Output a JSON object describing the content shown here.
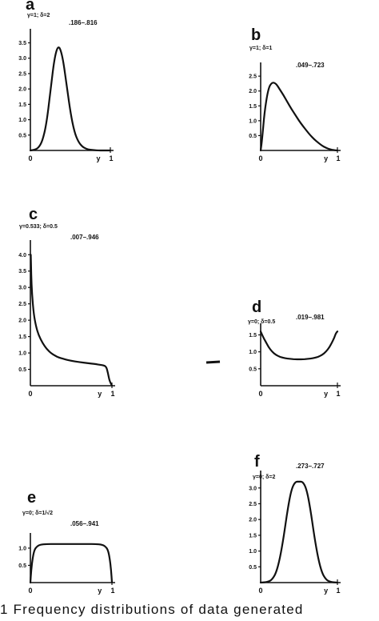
{
  "caption": "1  Frequency distributions of data generated",
  "chart_data": [
    {
      "type": "line",
      "panel": "a",
      "params": "γ=1; δ=2",
      "range": ".186–.816",
      "x_ticks": [
        "0",
        "y",
        "1"
      ],
      "y_ticks": [
        0.5,
        1.0,
        1.5,
        2.0,
        2.5,
        3.0,
        3.5
      ],
      "y_tick_labels": [
        "0.5",
        "1.0",
        "1.5",
        "2.0",
        "2.5",
        "3.0",
        "3.5"
      ],
      "ylim": [
        0,
        3.8
      ],
      "xlim": [
        0,
        1
      ],
      "x": [
        0.0,
        0.05,
        0.1,
        0.15,
        0.2,
        0.25,
        0.3,
        0.35,
        0.4,
        0.45,
        0.5,
        0.55,
        0.6,
        0.65,
        0.7,
        0.75,
        0.8,
        0.85,
        0.9,
        0.95,
        1.0
      ],
      "y": [
        0.0,
        0.02,
        0.08,
        0.3,
        0.85,
        1.9,
        3.0,
        3.45,
        3.1,
        2.2,
        1.25,
        0.6,
        0.28,
        0.12,
        0.05,
        0.02,
        0.01,
        0.0,
        0.0,
        0.0,
        0.0
      ]
    },
    {
      "type": "line",
      "panel": "b",
      "params": "γ=1; δ=1",
      "range": ".049–.723",
      "x_ticks": [
        "0",
        "y",
        "1"
      ],
      "y_ticks": [
        0.5,
        1.0,
        1.5,
        2.0,
        2.5
      ],
      "y_tick_labels": [
        "0.5",
        "1.0",
        "1.5",
        "2.0",
        "2.5"
      ],
      "ylim": [
        0,
        2.8
      ],
      "xlim": [
        0,
        1
      ],
      "x": [
        0.0,
        0.02,
        0.05,
        0.1,
        0.15,
        0.2,
        0.25,
        0.3,
        0.35,
        0.4,
        0.45,
        0.5,
        0.55,
        0.6,
        0.65,
        0.7,
        0.75,
        0.8,
        0.85,
        0.9,
        0.95,
        1.0
      ],
      "y": [
        0.0,
        0.4,
        1.3,
        2.1,
        2.3,
        2.25,
        2.05,
        1.85,
        1.62,
        1.4,
        1.2,
        1.0,
        0.82,
        0.66,
        0.5,
        0.37,
        0.26,
        0.16,
        0.09,
        0.04,
        0.01,
        0.0
      ]
    },
    {
      "type": "line",
      "panel": "c",
      "params": "γ=0.533; δ=0.5",
      "range": ".007–.946",
      "x_ticks": [
        "0",
        "y",
        "1"
      ],
      "y_ticks": [
        0.5,
        1.0,
        1.5,
        2.0,
        2.5,
        3.0,
        3.5,
        4.0
      ],
      "y_tick_labels": [
        "0.5",
        "1.0",
        "1.5",
        "2.0",
        "2.5",
        "3.0",
        "3.5",
        "4.0"
      ],
      "ylim": [
        0,
        4.3
      ],
      "xlim": [
        0,
        1
      ],
      "x": [
        0.005,
        0.01,
        0.02,
        0.04,
        0.07,
        0.1,
        0.15,
        0.2,
        0.25,
        0.3,
        0.35,
        0.4,
        0.5,
        0.6,
        0.7,
        0.8,
        0.85,
        0.9,
        0.93,
        0.95,
        0.97,
        1.0
      ],
      "y": [
        4.0,
        3.4,
        2.8,
        2.2,
        1.8,
        1.55,
        1.3,
        1.12,
        1.0,
        0.92,
        0.86,
        0.82,
        0.76,
        0.72,
        0.69,
        0.66,
        0.64,
        0.62,
        0.58,
        0.4,
        0.15,
        0.0
      ]
    },
    {
      "type": "line",
      "panel": "d",
      "params": "γ=0; δ=0.5",
      "range": ".019–.981",
      "x_ticks": [
        "0",
        "y",
        "1"
      ],
      "y_ticks": [
        0.5,
        1.0,
        1.5
      ],
      "y_tick_labels": [
        "0.5",
        "1.0",
        "1.5"
      ],
      "ylim": [
        0,
        1.7
      ],
      "xlim": [
        0,
        1
      ],
      "x": [
        0.0,
        0.02,
        0.04,
        0.07,
        0.1,
        0.15,
        0.2,
        0.25,
        0.3,
        0.35,
        0.4,
        0.45,
        0.5,
        0.55,
        0.6,
        0.65,
        0.7,
        0.75,
        0.8,
        0.85,
        0.9,
        0.93,
        0.96,
        0.98,
        1.0
      ],
      "y": [
        1.6,
        1.5,
        1.4,
        1.28,
        1.15,
        1.0,
        0.91,
        0.85,
        0.82,
        0.8,
        0.79,
        0.78,
        0.78,
        0.78,
        0.79,
        0.8,
        0.82,
        0.85,
        0.91,
        1.0,
        1.15,
        1.28,
        1.42,
        1.55,
        1.6
      ]
    },
    {
      "type": "line",
      "panel": "e",
      "params": "γ=0; δ=1/√2",
      "range": ".056–.941",
      "x_ticks": [
        "0",
        "y",
        "1"
      ],
      "y_ticks": [
        0.5,
        1.0
      ],
      "y_tick_labels": [
        "0.5",
        "1.0"
      ],
      "ylim": [
        0,
        1.3
      ],
      "xlim": [
        0,
        1
      ],
      "x": [
        0.0,
        0.01,
        0.03,
        0.05,
        0.08,
        0.12,
        0.2,
        0.3,
        0.4,
        0.5,
        0.6,
        0.7,
        0.8,
        0.88,
        0.92,
        0.95,
        0.97,
        0.99,
        1.0
      ],
      "y": [
        0.0,
        0.35,
        0.75,
        0.95,
        1.05,
        1.1,
        1.12,
        1.12,
        1.12,
        1.12,
        1.12,
        1.12,
        1.12,
        1.1,
        1.05,
        0.95,
        0.75,
        0.35,
        0.0
      ]
    },
    {
      "type": "line",
      "panel": "f",
      "params": "γ=0; δ=2",
      "range": ".273–.727",
      "x_ticks": [
        "0",
        "y",
        "1"
      ],
      "y_ticks": [
        0.5,
        1.0,
        1.5,
        2.0,
        2.5,
        3.0
      ],
      "y_tick_labels": [
        "0.5",
        "1.0",
        "1.5",
        "2.0",
        "2.5",
        "3.0"
      ],
      "ylim": [
        0,
        3.4
      ],
      "xlim": [
        0,
        1
      ],
      "x": [
        0.0,
        0.1,
        0.15,
        0.2,
        0.25,
        0.3,
        0.35,
        0.4,
        0.45,
        0.5,
        0.55,
        0.6,
        0.65,
        0.7,
        0.75,
        0.8,
        0.85,
        0.9,
        1.0
      ],
      "y": [
        0.0,
        0.02,
        0.1,
        0.3,
        0.75,
        1.45,
        2.3,
        2.95,
        3.2,
        3.2,
        3.2,
        2.95,
        2.3,
        1.45,
        0.75,
        0.3,
        0.1,
        0.02,
        0.0
      ]
    }
  ]
}
